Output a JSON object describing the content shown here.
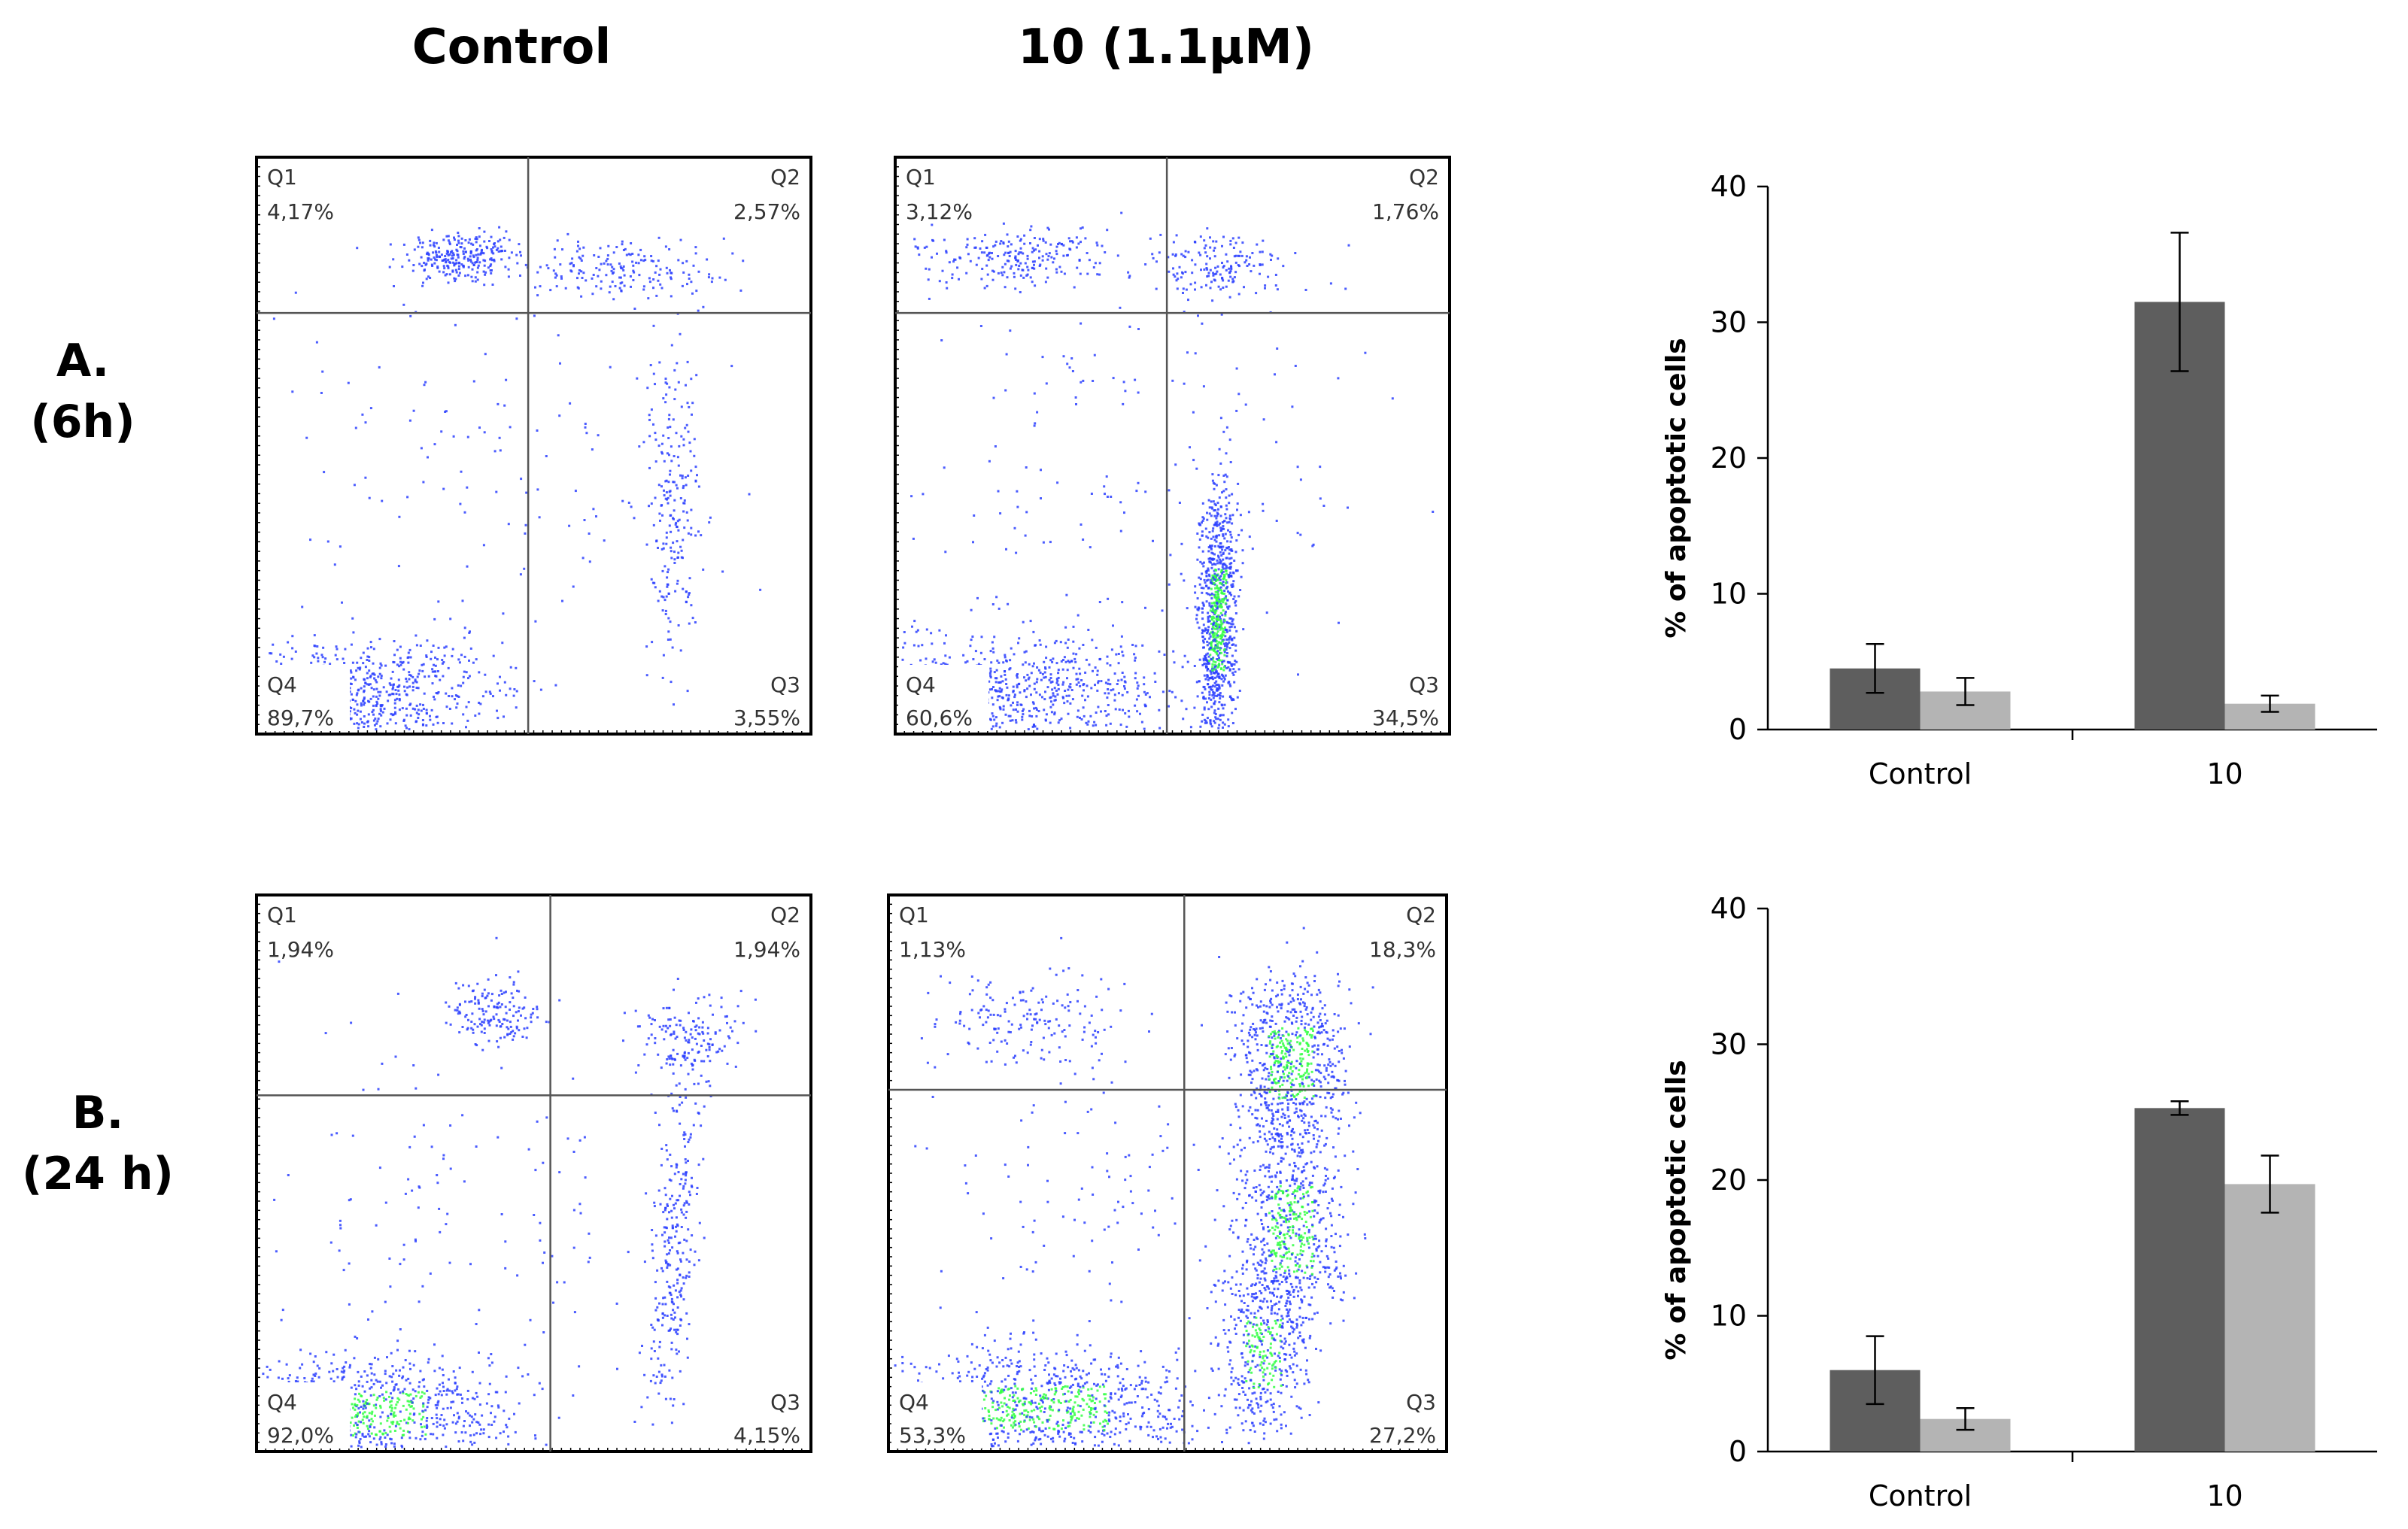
{
  "columns": {
    "control": "Control",
    "treated": "10 (1.1μM)"
  },
  "rows": [
    {
      "label": "A.",
      "sublabel": "(6h)"
    },
    {
      "label": "B.",
      "sublabel": "(24 h)"
    }
  ],
  "colors": {
    "series_dark": "#5e5e5e",
    "series_light": "#b4b4b4",
    "dots": "#2b3fff",
    "dense": "#33ff44"
  },
  "plots": [
    {
      "id": "a-control",
      "q1": "4,17%",
      "q2": "2,57%",
      "q3": "3,55%",
      "q4": "89,7%"
    },
    {
      "id": "a-treated",
      "q1": "3,12%",
      "q2": "1,76%",
      "q3": "34,5%",
      "q4": "60,6%"
    },
    {
      "id": "b-control",
      "q1": "1,94%",
      "q2": "1,94%",
      "q3": "4,15%",
      "q4": "92,0%"
    },
    {
      "id": "b-treated",
      "q1": "1,13%",
      "q2": "18,3%",
      "q3": "27,2%",
      "q4": "53,3%"
    }
  ],
  "quadrant_names": {
    "q1": "Q1",
    "q2": "Q2",
    "q3": "Q3",
    "q4": "Q4"
  },
  "chart_data": [
    {
      "type": "bar",
      "ylabel": "% of apoptotic cells",
      "ylim": [
        0,
        40
      ],
      "yticks": [
        0,
        10,
        20,
        30,
        40
      ],
      "categories": [
        "Control",
        "10"
      ],
      "series": [
        {
          "values": [
            4.5,
            31.5
          ],
          "errors": [
            1.8,
            5.1
          ]
        },
        {
          "values": [
            2.8,
            1.9
          ],
          "errors": [
            1.0,
            0.6
          ]
        }
      ]
    },
    {
      "type": "bar",
      "ylabel": "% of apoptotic cells",
      "ylim": [
        0,
        40
      ],
      "yticks": [
        0,
        10,
        20,
        30,
        40
      ],
      "categories": [
        "Control",
        "10"
      ],
      "series": [
        {
          "values": [
            6.0,
            25.3
          ],
          "errors": [
            2.5,
            0.5
          ]
        },
        {
          "values": [
            2.4,
            19.7
          ],
          "errors": [
            0.8,
            2.1
          ]
        }
      ]
    }
  ]
}
